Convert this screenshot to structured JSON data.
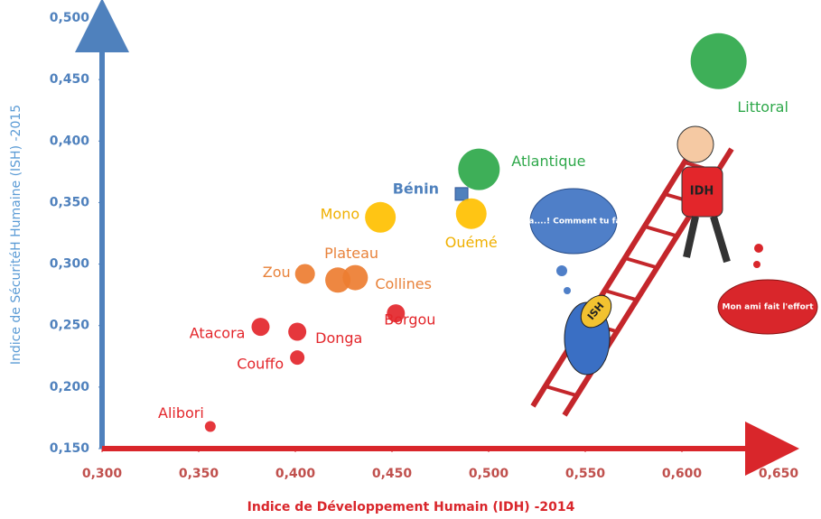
{
  "chart_data": {
    "type": "bubble",
    "xlabel": "Indice de  Développement Humain (IDH) -2014",
    "ylabel": "Indice de SécuritéH Humaine (ISH) -2015",
    "xlim": [
      0.3,
      0.65
    ],
    "ylim": [
      0.15,
      0.5
    ],
    "xticks": [
      {
        "value": 0.3,
        "label": "0,300"
      },
      {
        "value": 0.35,
        "label": "0,350"
      },
      {
        "value": 0.4,
        "label": "0,400"
      },
      {
        "value": 0.45,
        "label": "0,450"
      },
      {
        "value": 0.5,
        "label": "0,500"
      },
      {
        "value": 0.55,
        "label": "0,550"
      },
      {
        "value": 0.6,
        "label": "0,600"
      },
      {
        "value": 0.65,
        "label": "0,650"
      }
    ],
    "yticks": [
      {
        "value": 0.15,
        "label": "0,150"
      },
      {
        "value": 0.2,
        "label": "0,200"
      },
      {
        "value": 0.25,
        "label": "0,250"
      },
      {
        "value": 0.3,
        "label": "0,300"
      },
      {
        "value": 0.35,
        "label": "0,350"
      },
      {
        "value": 0.4,
        "label": "0,400"
      },
      {
        "value": 0.45,
        "label": "0,450"
      },
      {
        "value": 0.5,
        "label": "0,500"
      }
    ],
    "series": [
      {
        "name": "Littoral",
        "color": "#2ea84a",
        "x": [
          0.619
        ],
        "values": [
          0.465
        ],
        "sizes": [
          31
        ]
      },
      {
        "name": "Atlantique",
        "color": "#2ea84a",
        "x": [
          0.495
        ],
        "values": [
          0.377
        ],
        "sizes": [
          23
        ]
      },
      {
        "name": "Bénin",
        "color": "#4f81bd",
        "x": [
          0.486
        ],
        "values": [
          0.357
        ],
        "sizes": [
          7
        ]
      },
      {
        "name": "Mono",
        "color": "#ffc000",
        "x": [
          0.444
        ],
        "values": [
          0.338
        ],
        "sizes": [
          17
        ]
      },
      {
        "name": "Ouémé",
        "color": "#ffc000",
        "x": [
          0.491
        ],
        "values": [
          0.341
        ],
        "sizes": [
          17
        ]
      },
      {
        "name": "Plateau",
        "color": "#ed7d31",
        "x": [
          0.422
        ],
        "values": [
          0.287
        ],
        "sizes": [
          14
        ]
      },
      {
        "name": "Collines",
        "color": "#ed7d31",
        "x": [
          0.431
        ],
        "values": [
          0.289
        ],
        "sizes": [
          14
        ]
      },
      {
        "name": "Zou",
        "color": "#ed7d31",
        "x": [
          0.405
        ],
        "values": [
          0.292
        ],
        "sizes": [
          11
        ]
      },
      {
        "name": "Borgou",
        "color": "#e3262b",
        "x": [
          0.452
        ],
        "values": [
          0.26
        ],
        "sizes": [
          10
        ]
      },
      {
        "name": "Atacora",
        "color": "#e3262b",
        "x": [
          0.382
        ],
        "values": [
          0.249
        ],
        "sizes": [
          10
        ]
      },
      {
        "name": "Donga",
        "color": "#e3262b",
        "x": [
          0.401
        ],
        "values": [
          0.245
        ],
        "sizes": [
          10
        ]
      },
      {
        "name": "Couffo",
        "color": "#e3262b",
        "x": [
          0.401
        ],
        "values": [
          0.224
        ],
        "sizes": [
          8
        ]
      },
      {
        "name": "Alibori",
        "color": "#e3262b",
        "x": [
          0.356
        ],
        "values": [
          0.168
        ],
        "sizes": [
          6
        ]
      }
    ],
    "annotations": [
      "Haaa....! Comment tu fais ?",
      "Mon ami fait l'effort",
      "IDH",
      "ISH"
    ]
  }
}
